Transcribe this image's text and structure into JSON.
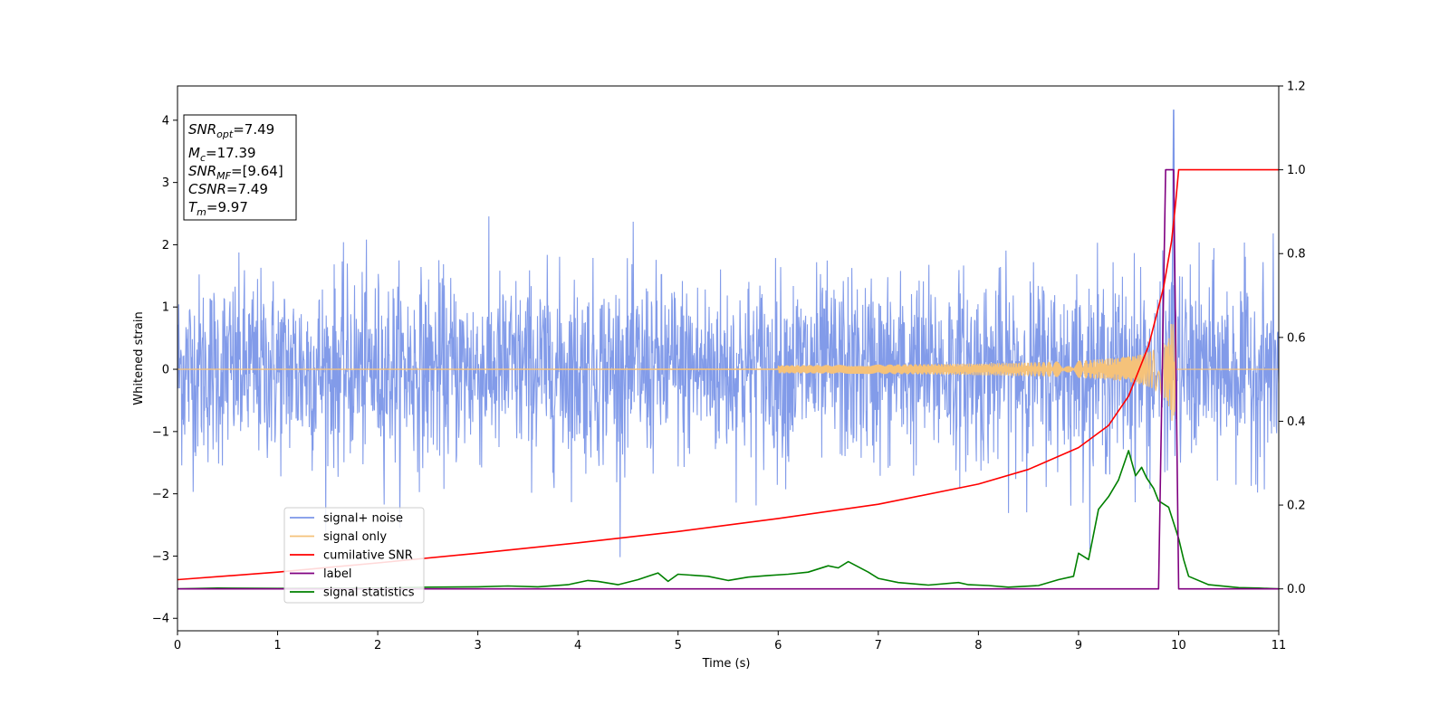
{
  "chart_data": {
    "type": "line",
    "xlabel": "Time (s)",
    "ylabel": "Whitened strain",
    "xlim": [
      0,
      11
    ],
    "ylim_left": [
      -4.2,
      4.55
    ],
    "ylim_right": [
      -0.1,
      1.2
    ],
    "x_ticks": [
      0,
      1,
      2,
      3,
      4,
      5,
      6,
      7,
      8,
      9,
      10,
      11
    ],
    "y_ticks_left": [
      -4,
      -3,
      -2,
      -1,
      0,
      1,
      2,
      3,
      4
    ],
    "y_ticks_right": [
      "0.0",
      "0.2",
      "0.4",
      "0.6",
      "0.8",
      "1.0",
      "1.2"
    ],
    "grid": false,
    "legend_position": "lower-left",
    "stats_box": {
      "lines": [
        {
          "base": "SNR",
          "sub": "opt",
          "value": "=7.49"
        },
        {
          "base": "M",
          "sub": "c",
          "value": "=17.39"
        },
        {
          "base": "SNR",
          "sub": "MF",
          "value": "=[9.64]"
        },
        {
          "base": "CSNR",
          "sub": "",
          "value": "=7.49"
        },
        {
          "base": "T",
          "sub": "m",
          "value": "=9.97"
        }
      ]
    },
    "series": [
      {
        "name": "signal+ noise",
        "axis": "left",
        "color": "#7b96e8",
        "noise_std": 0.75,
        "merger_time": 9.97,
        "max_value": 4.17,
        "min_value": -3.83
      },
      {
        "name": "signal only",
        "axis": "left",
        "color": "#f5c27a",
        "merger_time": 9.97,
        "peak_amplitude": 0.95
      },
      {
        "name": "cumilative SNR",
        "axis": "right",
        "color": "#ff0000",
        "x": [
          0,
          1,
          2,
          3,
          4,
          5,
          6,
          7,
          8,
          8.5,
          9,
          9.3,
          9.5,
          9.7,
          9.85,
          9.93,
          9.97,
          10.0,
          11
        ],
        "values": [
          0.022,
          0.04,
          0.062,
          0.085,
          0.11,
          0.137,
          0.168,
          0.202,
          0.25,
          0.285,
          0.337,
          0.39,
          0.46,
          0.58,
          0.72,
          0.83,
          0.92,
          1.0,
          1.0
        ]
      },
      {
        "name": "label",
        "axis": "right",
        "color": "#800080",
        "x": [
          0,
          9.8,
          9.87,
          9.95,
          10.0,
          11
        ],
        "values": [
          0.0,
          0.0,
          1.0,
          1.0,
          0.0,
          0.0
        ]
      },
      {
        "name": "signal statistics",
        "axis": "right",
        "color": "#008000",
        "x": [
          0,
          0.4,
          1,
          2,
          2.5,
          3,
          3.3,
          3.6,
          3.9,
          4.1,
          4.2,
          4.4,
          4.6,
          4.8,
          4.9,
          5.0,
          5.3,
          5.5,
          5.7,
          5.9,
          6.1,
          6.3,
          6.5,
          6.6,
          6.7,
          6.9,
          7.0,
          7.2,
          7.5,
          7.8,
          7.9,
          8.1,
          8.3,
          8.6,
          8.8,
          8.95,
          9.0,
          9.1,
          9.2,
          9.3,
          9.4,
          9.5,
          9.57,
          9.63,
          9.68,
          9.75,
          9.8,
          9.9,
          10.0,
          10.05,
          10.1,
          10.3,
          10.6,
          10.8,
          11
        ],
        "values": [
          0.0,
          0.002,
          0.001,
          0.002,
          0.004,
          0.005,
          0.007,
          0.005,
          0.01,
          0.02,
          0.018,
          0.01,
          0.022,
          0.038,
          0.018,
          0.035,
          0.03,
          0.02,
          0.028,
          0.032,
          0.035,
          0.04,
          0.055,
          0.05,
          0.065,
          0.04,
          0.025,
          0.015,
          0.009,
          0.015,
          0.01,
          0.008,
          0.004,
          0.008,
          0.022,
          0.03,
          0.085,
          0.07,
          0.19,
          0.22,
          0.26,
          0.33,
          0.27,
          0.29,
          0.265,
          0.24,
          0.21,
          0.195,
          0.12,
          0.07,
          0.03,
          0.01,
          0.003,
          0.002,
          0.0
        ]
      }
    ]
  }
}
